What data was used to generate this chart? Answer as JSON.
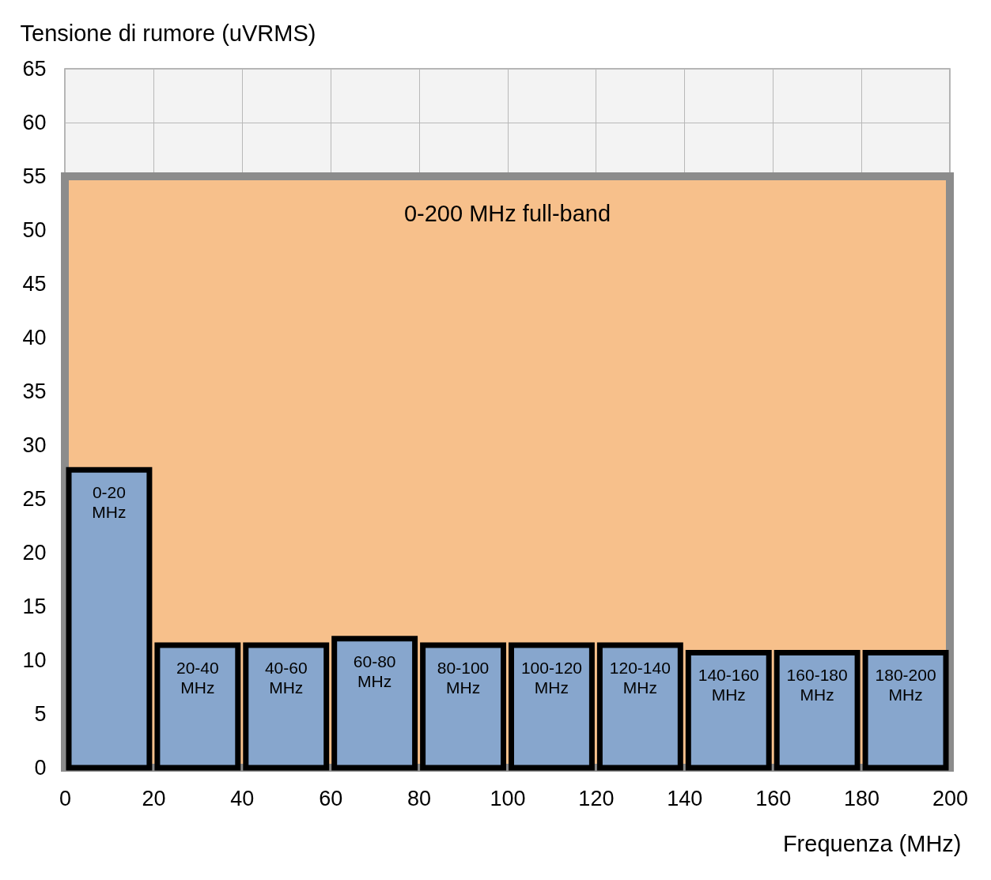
{
  "chart_data": {
    "type": "histogram",
    "xlabel": "Frequenza (MHz)",
    "ylabel": "Tensione di rumore (uVRMS)",
    "xlim": [
      0,
      200
    ],
    "xticks": [
      0,
      20,
      40,
      60,
      80,
      100,
      120,
      140,
      160,
      180,
      200
    ],
    "ylim": [
      0,
      65
    ],
    "yticks": [
      0,
      5,
      10,
      15,
      20,
      25,
      30,
      35,
      40,
      45,
      50,
      55,
      60,
      65
    ],
    "grid": true,
    "bins": [
      0,
      20,
      40,
      60,
      80,
      100,
      120,
      140,
      160,
      180,
      200
    ],
    "values": [
      27.7,
      11.4,
      11.4,
      12.0,
      11.4,
      11.4,
      11.4,
      10.7,
      10.7,
      10.7
    ],
    "color": "#87a6cd",
    "bands": [
      {
        "axis": "y",
        "from": 0,
        "to": 55,
        "label": "0-200 MHz full-band",
        "color": "#f7c08b"
      }
    ],
    "annotations": [
      {
        "text": "0-20 MHz",
        "x": 10,
        "y": 27.7
      },
      {
        "text": "20-40 MHz",
        "x": 30,
        "y": 11.4
      },
      {
        "text": "40-60 MHz",
        "x": 50,
        "y": 11.4
      },
      {
        "text": "60-80 MHz",
        "x": 70,
        "y": 12.0
      },
      {
        "text": "80-100 MHz",
        "x": 90,
        "y": 11.4
      },
      {
        "text": "100-120 MHz",
        "x": 110,
        "y": 11.4
      },
      {
        "text": "120-140 MHz",
        "x": 130,
        "y": 11.4
      },
      {
        "text": "140-160 MHz",
        "x": 150,
        "y": 10.7
      },
      {
        "text": "160-180 MHz",
        "x": 170,
        "y": 10.7
      },
      {
        "text": "180-200 MHz",
        "x": 190,
        "y": 10.7
      }
    ]
  }
}
